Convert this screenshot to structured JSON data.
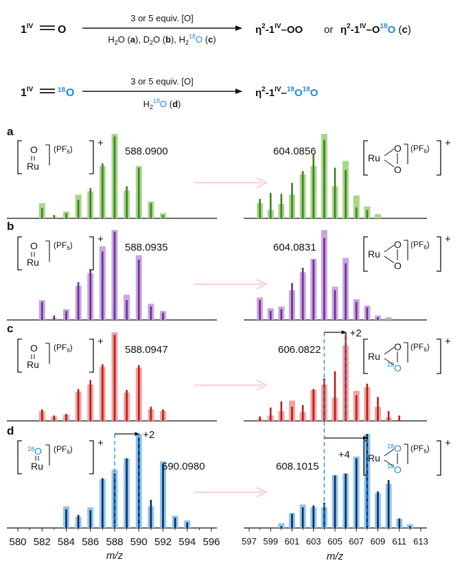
{
  "scheme": {
    "row1": {
      "reactant": "1",
      "reactant_sup": "IV",
      "reactant_o": "O",
      "conditions_top": "3 or 5 equiv. [O]",
      "conditions_bottom": [
        "H2O (a), D2O (b), H2",
        "18",
        "O (c)"
      ],
      "product1": "η2-1IV–OO",
      "or": "or",
      "product2": "η2-1IV–O18O (c)"
    },
    "row2": {
      "reactant": "1",
      "reactant_sup": "IV",
      "reactant_o": "18O",
      "conditions_top": "3 or 5 equiv. [O]",
      "conditions_bottom": "H2 18O (d)",
      "product": "η2-1IV–18O18O"
    }
  },
  "colors": {
    "a": {
      "bar": "#a8d68a",
      "line": "#3f7f24"
    },
    "b": {
      "bar": "#c9a6dc",
      "line": "#6a2e96"
    },
    "c": {
      "bar": "#f2a3a0",
      "line": "#b71c1c"
    },
    "d": {
      "bar": "#8ec7ee",
      "line": "#0d2a5c"
    },
    "arrow": "#f9d3dc",
    "isotope_blue": "#1e88e5"
  },
  "chart_data": [
    {
      "type": "bar",
      "panel": "a",
      "complex": "Ru=O (PF6)+",
      "peak_label": "588.0900",
      "left": {
        "x": [
          582,
          583,
          584,
          585,
          586,
          587,
          588,
          589,
          590,
          591,
          592
        ],
        "calc": [
          0.18,
          0.02,
          0.08,
          0.28,
          0.32,
          0.62,
          1.0,
          0.33,
          0.62,
          0.2,
          0.06
        ],
        "exp": [
          0.12,
          0.04,
          0.06,
          0.22,
          0.36,
          0.65,
          0.97,
          0.38,
          0.6,
          0.18,
          0.04
        ]
      },
      "right": {
        "peak_label": "604.0856",
        "x": [
          598,
          599,
          600,
          601,
          602,
          603,
          604,
          605,
          606,
          607,
          608,
          609,
          610,
          611
        ],
        "calc": [
          0.18,
          0.1,
          0.17,
          0.28,
          0.52,
          0.62,
          1.0,
          0.38,
          0.68,
          0.27,
          0.14,
          0.05,
          0.0,
          0.0
        ],
        "exp": [
          0.23,
          0.3,
          0.29,
          0.42,
          0.56,
          0.76,
          0.93,
          0.6,
          0.57,
          0.13,
          0.1,
          0.0,
          0.0,
          0.0
        ]
      },
      "xlim_left": [
        580,
        596
      ],
      "xlim_right": [
        597,
        613
      ]
    },
    {
      "type": "bar",
      "panel": "b",
      "complex": "Ru=O (PF6)+",
      "peak_label": "588.0935",
      "left": {
        "x": [
          582,
          583,
          584,
          585,
          586,
          587,
          588,
          589,
          590,
          591,
          592
        ],
        "calc": [
          0.22,
          0.02,
          0.12,
          0.38,
          0.52,
          0.82,
          1.0,
          0.28,
          0.72,
          0.18,
          0.1
        ],
        "exp": [
          0.2,
          0.05,
          0.1,
          0.42,
          0.56,
          0.76,
          0.98,
          0.22,
          0.67,
          0.15,
          0.08
        ]
      },
      "right": {
        "peak_label": "604.0831",
        "x": [
          598,
          599,
          600,
          601,
          602,
          603,
          604,
          605,
          606,
          607,
          608,
          609,
          610,
          611
        ],
        "calc": [
          0.25,
          0.13,
          0.15,
          0.33,
          0.53,
          0.68,
          1.0,
          0.37,
          0.69,
          0.23,
          0.16,
          0.05,
          0.03,
          0.0
        ],
        "exp": [
          0.22,
          0.1,
          0.12,
          0.41,
          0.58,
          0.67,
          0.91,
          0.33,
          0.63,
          0.2,
          0.14,
          0.03,
          0.0,
          0.0
        ]
      },
      "xlim_left": [
        580,
        596
      ],
      "xlim_right": [
        597,
        613
      ]
    },
    {
      "type": "bar",
      "panel": "c",
      "complex": "Ru=O (PF6)+",
      "peak_label": "588.0947",
      "left": {
        "x": [
          582,
          583,
          584,
          585,
          586,
          587,
          588,
          589,
          590,
          591,
          592
        ],
        "calc": [
          0.11,
          0.05,
          0.07,
          0.33,
          0.41,
          0.61,
          1.0,
          0.32,
          0.6,
          0.13,
          0.11
        ],
        "exp": [
          0.13,
          0.06,
          0.08,
          0.36,
          0.46,
          0.64,
          0.97,
          0.35,
          0.63,
          0.16,
          0.13
        ]
      },
      "right": {
        "peak_label": "606.0822",
        "shift_label": "+2",
        "x": [
          598,
          599,
          600,
          601,
          602,
          603,
          604,
          605,
          606,
          607,
          608,
          609,
          610,
          611
        ],
        "calc": [
          0.02,
          0.06,
          0.11,
          0.23,
          0.1,
          0.35,
          0.41,
          0.26,
          0.85,
          0.34,
          0.38,
          0.16,
          0.04,
          0.0
        ],
        "exp": [
          0.05,
          0.15,
          0.22,
          0.16,
          0.18,
          0.36,
          0.48,
          0.56,
          1.0,
          0.29,
          0.42,
          0.27,
          0.11,
          0.06
        ]
      },
      "xlim_left": [
        580,
        596
      ],
      "xlim_right": [
        597,
        613
      ]
    },
    {
      "type": "bar",
      "panel": "d",
      "complex": "Ru=18O (PF6)+",
      "peak_label": "590.0980",
      "shift_label": "+2",
      "left": {
        "x": [
          584,
          585,
          586,
          587,
          588,
          589,
          590,
          591,
          592,
          593,
          594
        ],
        "calc": [
          0.23,
          0.12,
          0.22,
          0.52,
          0.62,
          0.74,
          1.0,
          0.23,
          0.71,
          0.13,
          0.08
        ],
        "exp": [
          0.2,
          0.14,
          0.19,
          0.53,
          0.58,
          0.74,
          0.96,
          0.3,
          0.68,
          0.11,
          0.06
        ]
      },
      "right": {
        "peak_label": "608.1015",
        "shift_label": "+4",
        "x": [
          600,
          601,
          602,
          603,
          604,
          605,
          606,
          607,
          608,
          609,
          610,
          611,
          612
        ],
        "calc": [
          0.05,
          0.16,
          0.25,
          0.22,
          0.22,
          0.56,
          0.58,
          0.76,
          1.0,
          0.37,
          0.47,
          0.1,
          0.04
        ],
        "exp": [
          0.02,
          0.15,
          0.22,
          0.24,
          0.27,
          0.56,
          0.58,
          0.74,
          1.0,
          0.39,
          0.51,
          0.1,
          0.02
        ]
      },
      "xlim_left": [
        580,
        596
      ],
      "xlim_right": [
        597,
        613
      ]
    }
  ],
  "axes": {
    "left_ticks": [
      580,
      582,
      584,
      586,
      588,
      590,
      592,
      594,
      596
    ],
    "right_ticks": [
      597,
      599,
      601,
      603,
      605,
      607,
      609,
      611,
      613
    ],
    "xlabel": "m/z"
  }
}
